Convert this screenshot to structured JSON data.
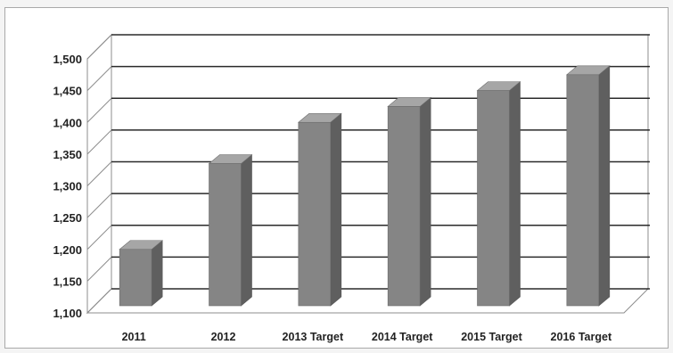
{
  "chart_data": {
    "type": "bar",
    "style": "3d-column",
    "categories": [
      "2011",
      "2012",
      "2013 Target",
      "2014 Target",
      "2015 Target",
      "2016 Target"
    ],
    "values": [
      1200,
      1335,
      1400,
      1425,
      1450,
      1475
    ],
    "ylim": [
      1100,
      1500
    ],
    "yticks": [
      "1,100",
      "1,150",
      "1,200",
      "1,250",
      "1,300",
      "1,350",
      "1,400",
      "1,450",
      "1,500"
    ],
    "title": "",
    "xlabel": "",
    "ylabel": "",
    "grid": true,
    "legend": "none",
    "colors": {
      "bar_front": "#858585",
      "bar_side": "#5f5f5f",
      "bar_top": "#a6a6a6",
      "grid": "#2a2a2a",
      "axis": "#8c8c8c"
    }
  }
}
